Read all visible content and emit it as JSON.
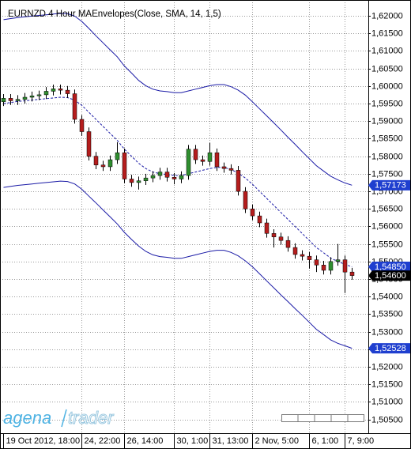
{
  "chart_data": {
    "type": "candlestick",
    "title": "EURNZD 4 Hour  MAEnvelopes(Close, SMA, 14, 1,5)",
    "logo_text": [
      "agena",
      "trader"
    ],
    "x": [
      0,
      1,
      2,
      3,
      4,
      5,
      6,
      7,
      8,
      9,
      10,
      11,
      12,
      13,
      14,
      15,
      16,
      17,
      18,
      19,
      20,
      21,
      22,
      23,
      24,
      25,
      26,
      27,
      28,
      29,
      30,
      31,
      32,
      33,
      34,
      35,
      36,
      37,
      38,
      39,
      40,
      41,
      42,
      43,
      44,
      45,
      46,
      47,
      48,
      49
    ],
    "open": [
      1.5955,
      1.5965,
      1.5958,
      1.5962,
      1.5968,
      1.5972,
      1.5975,
      1.5985,
      1.5992,
      1.5988,
      1.5978,
      1.5905,
      1.587,
      1.58,
      1.5775,
      1.577,
      1.579,
      1.581,
      1.5735,
      1.5725,
      1.573,
      1.5738,
      1.5745,
      1.5755,
      1.574,
      1.5735,
      1.5745,
      1.582,
      1.579,
      1.5785,
      1.581,
      1.577,
      1.5765,
      1.576,
      1.57,
      1.565,
      1.563,
      1.561,
      1.558,
      1.557,
      1.556,
      1.554,
      1.552,
      1.5515,
      1.5505,
      1.549,
      1.5475,
      1.55,
      1.5505,
      1.547
    ],
    "high": [
      1.5977,
      1.5977,
      1.5974,
      1.598,
      1.5984,
      1.5987,
      1.5997,
      1.6004,
      1.6004,
      1.6,
      1.599,
      1.5917,
      1.5882,
      1.5812,
      1.5787,
      1.5802,
      1.584,
      1.5822,
      1.5747,
      1.5742,
      1.575,
      1.5757,
      1.5767,
      1.5767,
      1.5752,
      1.5757,
      1.5832,
      1.5832,
      1.5802,
      1.5838,
      1.5822,
      1.5782,
      1.5777,
      1.5772,
      1.5712,
      1.5662,
      1.5642,
      1.5622,
      1.5592,
      1.5582,
      1.5572,
      1.5552,
      1.5532,
      1.5527,
      1.5517,
      1.5502,
      1.5512,
      1.555,
      1.5517,
      1.5482
    ],
    "low": [
      1.5943,
      1.5946,
      1.5946,
      1.595,
      1.5956,
      1.596,
      1.5963,
      1.5973,
      1.5976,
      1.5966,
      1.5893,
      1.5858,
      1.5788,
      1.5763,
      1.5758,
      1.5758,
      1.5778,
      1.5723,
      1.5713,
      1.5705,
      1.5718,
      1.5726,
      1.5733,
      1.5728,
      1.572,
      1.5723,
      1.5733,
      1.5778,
      1.5773,
      1.5773,
      1.5758,
      1.5753,
      1.5748,
      1.5688,
      1.5638,
      1.5618,
      1.5598,
      1.5568,
      1.554,
      1.5548,
      1.5528,
      1.5508,
      1.5503,
      1.548,
      1.547,
      1.5463,
      1.5463,
      1.5488,
      1.541,
      1.5448
    ],
    "close": [
      1.5965,
      1.5958,
      1.5962,
      1.5968,
      1.5972,
      1.5975,
      1.5985,
      1.5992,
      1.5988,
      1.5978,
      1.5905,
      1.587,
      1.58,
      1.5775,
      1.577,
      1.579,
      1.581,
      1.5735,
      1.5725,
      1.573,
      1.5738,
      1.5745,
      1.5755,
      1.574,
      1.5735,
      1.5745,
      1.582,
      1.579,
      1.5785,
      1.581,
      1.577,
      1.5765,
      1.576,
      1.57,
      1.565,
      1.563,
      1.561,
      1.558,
      1.557,
      1.556,
      1.554,
      1.552,
      1.5515,
      1.5505,
      1.549,
      1.5475,
      1.55,
      1.5505,
      1.547,
      1.546
    ],
    "up_color": "#2f8f2f",
    "down_color": "#b51d1d",
    "series": [
      {
        "color": "#1a1aa6",
        "style": "solid",
        "values": [
          1.6189,
          1.6192,
          1.6195,
          1.6197,
          1.6199,
          1.6201,
          1.6203,
          1.6205,
          1.6207,
          1.6206,
          1.6199,
          1.6184,
          1.6164,
          1.6143,
          1.6123,
          1.6103,
          1.6083,
          1.6057,
          1.6037,
          1.6016,
          1.6001,
          1.5991,
          1.5986,
          1.5984,
          1.5981,
          1.5981,
          1.5986,
          1.5991,
          1.5996,
          1.6001,
          1.6004,
          1.6004,
          1.5998,
          1.5988,
          1.5974,
          1.5955,
          1.5935,
          1.5915,
          1.5895,
          1.5875,
          1.5854,
          1.5834,
          1.5813,
          1.5793,
          1.5773,
          1.5758,
          1.5743,
          1.5733,
          1.5724,
          1.57173
        ]
      },
      {
        "color": "#1a1aa6",
        "style": "dashed",
        "values": [
          1.595,
          1.5953,
          1.5956,
          1.5958,
          1.596,
          1.5962,
          1.5964,
          1.5966,
          1.5968,
          1.5967,
          1.596,
          1.5945,
          1.5925,
          1.5905,
          1.5885,
          1.5865,
          1.5845,
          1.582,
          1.58,
          1.578,
          1.5765,
          1.5755,
          1.575,
          1.5748,
          1.5745,
          1.5745,
          1.575,
          1.5755,
          1.576,
          1.5765,
          1.5768,
          1.5768,
          1.5762,
          1.5752,
          1.5738,
          1.572,
          1.57,
          1.568,
          1.566,
          1.564,
          1.562,
          1.56,
          1.558,
          1.556,
          1.554,
          1.5525,
          1.551,
          1.55,
          1.5492,
          1.5485
        ]
      },
      {
        "color": "#1a1aa6",
        "style": "solid",
        "values": [
          1.5711,
          1.5714,
          1.5717,
          1.5719,
          1.5721,
          1.5723,
          1.5725,
          1.5727,
          1.5729,
          1.5728,
          1.5721,
          1.5706,
          1.5686,
          1.5667,
          1.5647,
          1.5627,
          1.5607,
          1.5583,
          1.5563,
          1.5544,
          1.5529,
          1.5519,
          1.5514,
          1.5512,
          1.5509,
          1.5509,
          1.5514,
          1.5519,
          1.5524,
          1.5529,
          1.5532,
          1.5532,
          1.5526,
          1.5516,
          1.5502,
          1.5485,
          1.5465,
          1.5445,
          1.5425,
          1.5405,
          1.5386,
          1.5366,
          1.5347,
          1.5327,
          1.5307,
          1.5292,
          1.5277,
          1.5267,
          1.526,
          1.52528
        ]
      }
    ],
    "xlim": [
      -0.5,
      51.3
    ],
    "ylim": [
      1.5011,
      1.6245
    ],
    "grid": true,
    "yticks": [
      {
        "value": 1.62,
        "label": "1,62000"
      },
      {
        "value": 1.615,
        "label": "1,61500"
      },
      {
        "value": 1.61,
        "label": "1,61000"
      },
      {
        "value": 1.605,
        "label": "1,60500"
      },
      {
        "value": 1.6,
        "label": "1,60000"
      },
      {
        "value": 1.595,
        "label": "1,59500"
      },
      {
        "value": 1.59,
        "label": "1,59000"
      },
      {
        "value": 1.585,
        "label": "1,58500"
      },
      {
        "value": 1.58,
        "label": "1,58000"
      },
      {
        "value": 1.575,
        "label": "1,57500"
      },
      {
        "value": 1.57,
        "label": "1,57000"
      },
      {
        "value": 1.565,
        "label": "1,56500"
      },
      {
        "value": 1.56,
        "label": "1,56000"
      },
      {
        "value": 1.555,
        "label": "1,55500"
      },
      {
        "value": 1.55,
        "label": "1,55000"
      },
      {
        "value": 1.545,
        "label": "1,54500"
      },
      {
        "value": 1.54,
        "label": "1,54000"
      },
      {
        "value": 1.535,
        "label": "1,53500"
      },
      {
        "value": 1.53,
        "label": "1,53000"
      },
      {
        "value": 1.525,
        "label": "1,52500"
      },
      {
        "value": 1.52,
        "label": "1,52000"
      },
      {
        "value": 1.515,
        "label": "1,51500"
      },
      {
        "value": 1.51,
        "label": "1,51000"
      },
      {
        "value": 1.505,
        "label": "1,50500"
      }
    ],
    "xticks": [
      {
        "value": 0,
        "label": "19 Oct 2012, 18:00"
      },
      {
        "value": 11,
        "label": "24, 22:00"
      },
      {
        "value": 17,
        "label": "26, 14:00"
      },
      {
        "value": 24,
        "label": "30, 1:00"
      },
      {
        "value": 29,
        "label": "31, 13:00"
      },
      {
        "value": 35,
        "label": "2 Nov, 5:00"
      },
      {
        "value": 43,
        "label": "6, 1:00"
      },
      {
        "value": 48,
        "label": "7, 9:00"
      }
    ],
    "price_labels": [
      {
        "value": 1.57173,
        "label": "1,57173",
        "color": "#1f3fcf"
      },
      {
        "value": 1.5485,
        "label": "1,54850",
        "color": "#1f3fcf"
      },
      {
        "value": 1.546,
        "label": "1,54600",
        "color": "#000000"
      },
      {
        "value": 1.52528,
        "label": "1,52528",
        "color": "#1f3fcf"
      }
    ]
  }
}
